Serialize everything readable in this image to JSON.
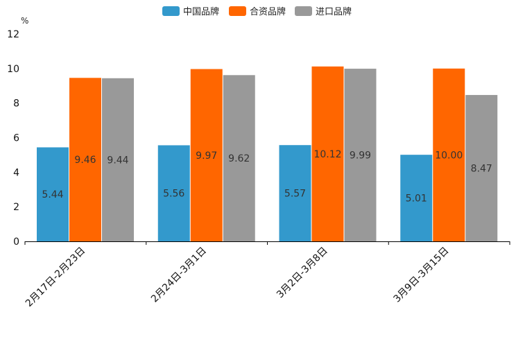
{
  "colors": {
    "china": "#3399cc",
    "joint": "#ff6600",
    "import": "#999999",
    "axis": "#000000"
  },
  "legend": [
    {
      "label": "中国品牌",
      "color": "#3399cc"
    },
    {
      "label": "合资品牌",
      "color": "#ff6600"
    },
    {
      "label": "进口品牌",
      "color": "#999999"
    }
  ],
  "chart_data": {
    "type": "bar",
    "title": "",
    "ylabel": "%",
    "xlabel": "",
    "ylim": [
      0,
      12
    ],
    "yticks": [
      0,
      2,
      4,
      6,
      8,
      10,
      12
    ],
    "grid": false,
    "legend_position": "top-center",
    "categories": [
      "2月17日-2月23日",
      "2月24日-3月1日",
      "3月2日-3月8日",
      "3月9日-3月15日"
    ],
    "series": [
      {
        "name": "中国品牌",
        "values": [
          5.44,
          5.56,
          5.57,
          5.01
        ],
        "labels": [
          "5.44",
          "5.56",
          "5.57",
          "5.01"
        ]
      },
      {
        "name": "合资品牌",
        "values": [
          9.46,
          9.97,
          10.12,
          10.0
        ],
        "labels": [
          "9.46",
          "9.97",
          "10.12",
          "10.00"
        ]
      },
      {
        "name": "进口品牌",
        "values": [
          9.44,
          9.62,
          9.99,
          8.47
        ],
        "labels": [
          "9.44",
          "9.62",
          "9.99",
          "8.47"
        ]
      }
    ]
  }
}
